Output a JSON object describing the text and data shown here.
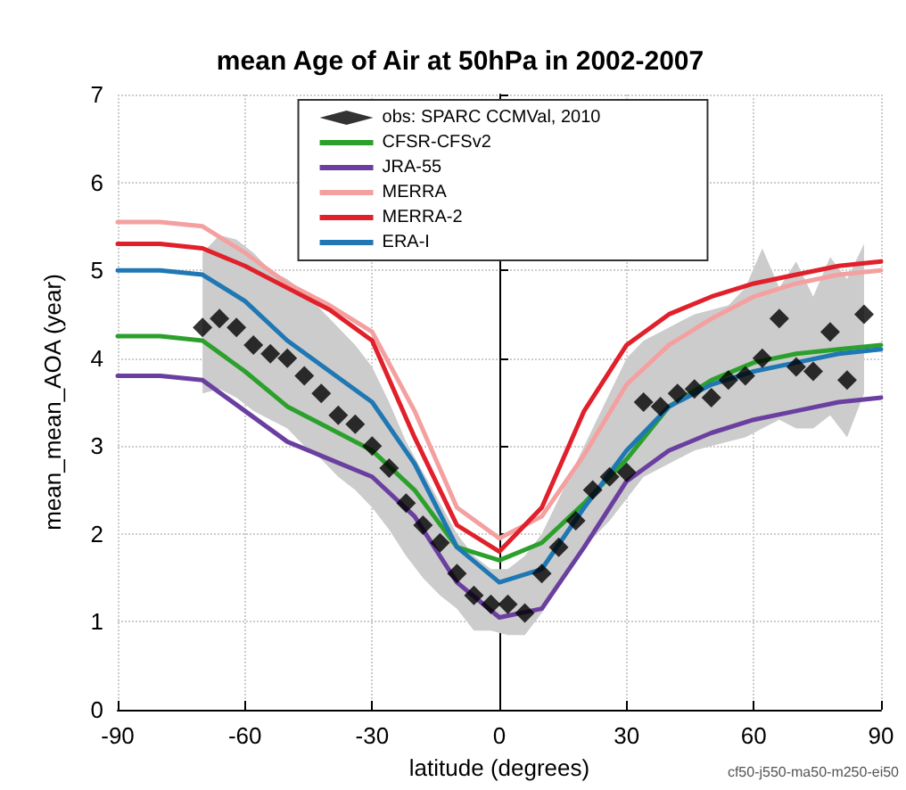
{
  "chart_data": {
    "type": "line",
    "title": "mean Age of Air at 50hPa in 2002-2007",
    "xlabel": "latitude (degrees)",
    "ylabel": "mean_mean_AOA (year)",
    "xlim": [
      -90,
      90
    ],
    "xticks": [
      -90,
      -60,
      -30,
      0,
      30,
      60,
      90
    ],
    "ylim": [
      0,
      7
    ],
    "yticks": [
      0,
      1,
      2,
      3,
      4,
      5,
      6,
      7
    ],
    "grid": true,
    "legend": "top",
    "annotations": [
      "cf50-j550-ma50-m250-ei50"
    ],
    "series": [
      {
        "name": "obs: SPARC CCMVal, 2010",
        "type": "scatter",
        "marker": "diamond",
        "color": "#000000",
        "x": [
          -70,
          -66,
          -62,
          -58,
          -54,
          -50,
          -46,
          -42,
          -38,
          -34,
          -30,
          -26,
          -22,
          -18,
          -14,
          -10,
          -6,
          -2,
          2,
          6,
          10,
          14,
          18,
          22,
          26,
          30,
          34,
          38,
          42,
          46,
          50,
          54,
          58,
          62,
          66,
          70,
          74,
          78,
          82,
          86
        ],
        "values": [
          4.35,
          4.45,
          4.35,
          4.15,
          4.05,
          4.0,
          3.8,
          3.6,
          3.35,
          3.25,
          3.0,
          2.75,
          2.35,
          2.1,
          1.9,
          1.55,
          1.3,
          1.2,
          1.2,
          1.1,
          1.55,
          1.85,
          2.15,
          2.5,
          2.65,
          2.7,
          3.5,
          3.45,
          3.6,
          3.65,
          3.55,
          3.75,
          3.8,
          4.0,
          4.45,
          3.9,
          3.85,
          4.3,
          3.75,
          4.5
        ],
        "upper": [
          5.2,
          5.4,
          5.35,
          5.2,
          5.0,
          4.9,
          4.75,
          4.55,
          4.35,
          4.15,
          3.9,
          3.5,
          3.05,
          2.7,
          2.35,
          2.0,
          1.75,
          1.6,
          1.6,
          1.75,
          2.0,
          2.4,
          2.8,
          3.2,
          3.6,
          4.0,
          4.2,
          4.3,
          4.4,
          4.5,
          4.55,
          4.6,
          4.8,
          5.25,
          4.8,
          5.1,
          4.7,
          5.15,
          4.9,
          5.3
        ],
        "lower": [
          3.6,
          3.65,
          3.55,
          3.4,
          3.3,
          3.2,
          3.0,
          2.85,
          2.65,
          2.5,
          2.3,
          2.05,
          1.75,
          1.5,
          1.3,
          1.15,
          0.9,
          0.9,
          0.85,
          0.85,
          1.1,
          1.4,
          1.7,
          1.95,
          2.15,
          2.4,
          2.65,
          2.75,
          2.85,
          2.95,
          3.0,
          3.05,
          3.1,
          3.2,
          3.3,
          3.2,
          3.2,
          3.35,
          3.1,
          3.6
        ]
      },
      {
        "name": "CFSR-CFSv2",
        "marker": "none",
        "color": "#2ca02c",
        "x": [
          -90,
          -80,
          -70,
          -60,
          -50,
          -40,
          -30,
          -20,
          -10,
          0,
          10,
          20,
          30,
          40,
          50,
          60,
          70,
          80,
          90
        ],
        "values": [
          4.25,
          4.25,
          4.2,
          3.85,
          3.45,
          3.2,
          2.95,
          2.5,
          1.85,
          1.7,
          1.9,
          2.35,
          2.85,
          3.45,
          3.75,
          3.95,
          4.05,
          4.1,
          4.15
        ]
      },
      {
        "name": "JRA-55",
        "marker": "none",
        "color": "#6a3fa0",
        "x": [
          -90,
          -80,
          -70,
          -60,
          -50,
          -40,
          -30,
          -20,
          -10,
          0,
          10,
          20,
          30,
          40,
          50,
          60,
          70,
          80,
          90
        ],
        "values": [
          3.8,
          3.8,
          3.75,
          3.4,
          3.05,
          2.85,
          2.65,
          2.2,
          1.45,
          1.05,
          1.15,
          1.85,
          2.6,
          2.95,
          3.15,
          3.3,
          3.4,
          3.5,
          3.55
        ]
      },
      {
        "name": "MERRA",
        "marker": "none",
        "color": "#f4a0a0",
        "x": [
          -90,
          -80,
          -70,
          -60,
          -50,
          -40,
          -30,
          -20,
          -10,
          0,
          10,
          20,
          30,
          40,
          50,
          60,
          70,
          80,
          90
        ],
        "values": [
          5.55,
          5.55,
          5.5,
          5.2,
          4.85,
          4.6,
          4.3,
          3.4,
          2.3,
          1.95,
          2.2,
          2.9,
          3.7,
          4.15,
          4.45,
          4.7,
          4.85,
          4.95,
          5.0
        ]
      },
      {
        "name": "MERRA-2",
        "marker": "none",
        "color": "#e0202a",
        "x": [
          -90,
          -80,
          -70,
          -60,
          -50,
          -40,
          -30,
          -20,
          -10,
          0,
          10,
          20,
          30,
          40,
          50,
          60,
          70,
          80,
          90
        ],
        "values": [
          5.3,
          5.3,
          5.25,
          5.05,
          4.8,
          4.55,
          4.2,
          3.1,
          2.1,
          1.8,
          2.3,
          3.4,
          4.15,
          4.5,
          4.7,
          4.85,
          4.95,
          5.05,
          5.1
        ]
      },
      {
        "name": "ERA-I",
        "marker": "none",
        "color": "#1f77b4",
        "x": [
          -90,
          -80,
          -70,
          -60,
          -50,
          -40,
          -30,
          -20,
          -10,
          0,
          10,
          20,
          30,
          40,
          50,
          60,
          70,
          80,
          90
        ],
        "values": [
          5.0,
          5.0,
          4.95,
          4.65,
          4.2,
          3.85,
          3.5,
          2.8,
          1.85,
          1.45,
          1.6,
          2.3,
          2.95,
          3.45,
          3.7,
          3.85,
          3.95,
          4.05,
          4.1
        ]
      }
    ]
  }
}
